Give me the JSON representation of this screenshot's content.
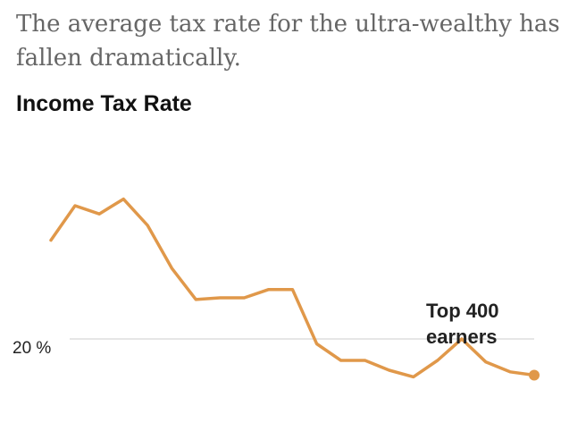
{
  "headline": "The average tax rate for the ultra-wealthy has fallen dramatically.",
  "chart_data": {
    "type": "line",
    "title": "Income Tax Rate",
    "xlabel": "",
    "ylabel": "",
    "yticks": [
      {
        "value": 20,
        "label": "20 %"
      }
    ],
    "ylim": [
      15.6,
      30
    ],
    "grid": "single reference line at 20%",
    "legend": "none",
    "annotation": {
      "lines": [
        "Top 400",
        "earners"
      ]
    },
    "series": [
      {
        "color": "#e0984a",
        "values": [
          26.0,
          28.1,
          27.6,
          28.5,
          26.9,
          24.3,
          22.4,
          22.5,
          22.5,
          23.0,
          23.0,
          19.7,
          18.7,
          18.7,
          18.1,
          17.7,
          18.7,
          20.0,
          18.6,
          18.0,
          17.8
        ]
      }
    ]
  }
}
